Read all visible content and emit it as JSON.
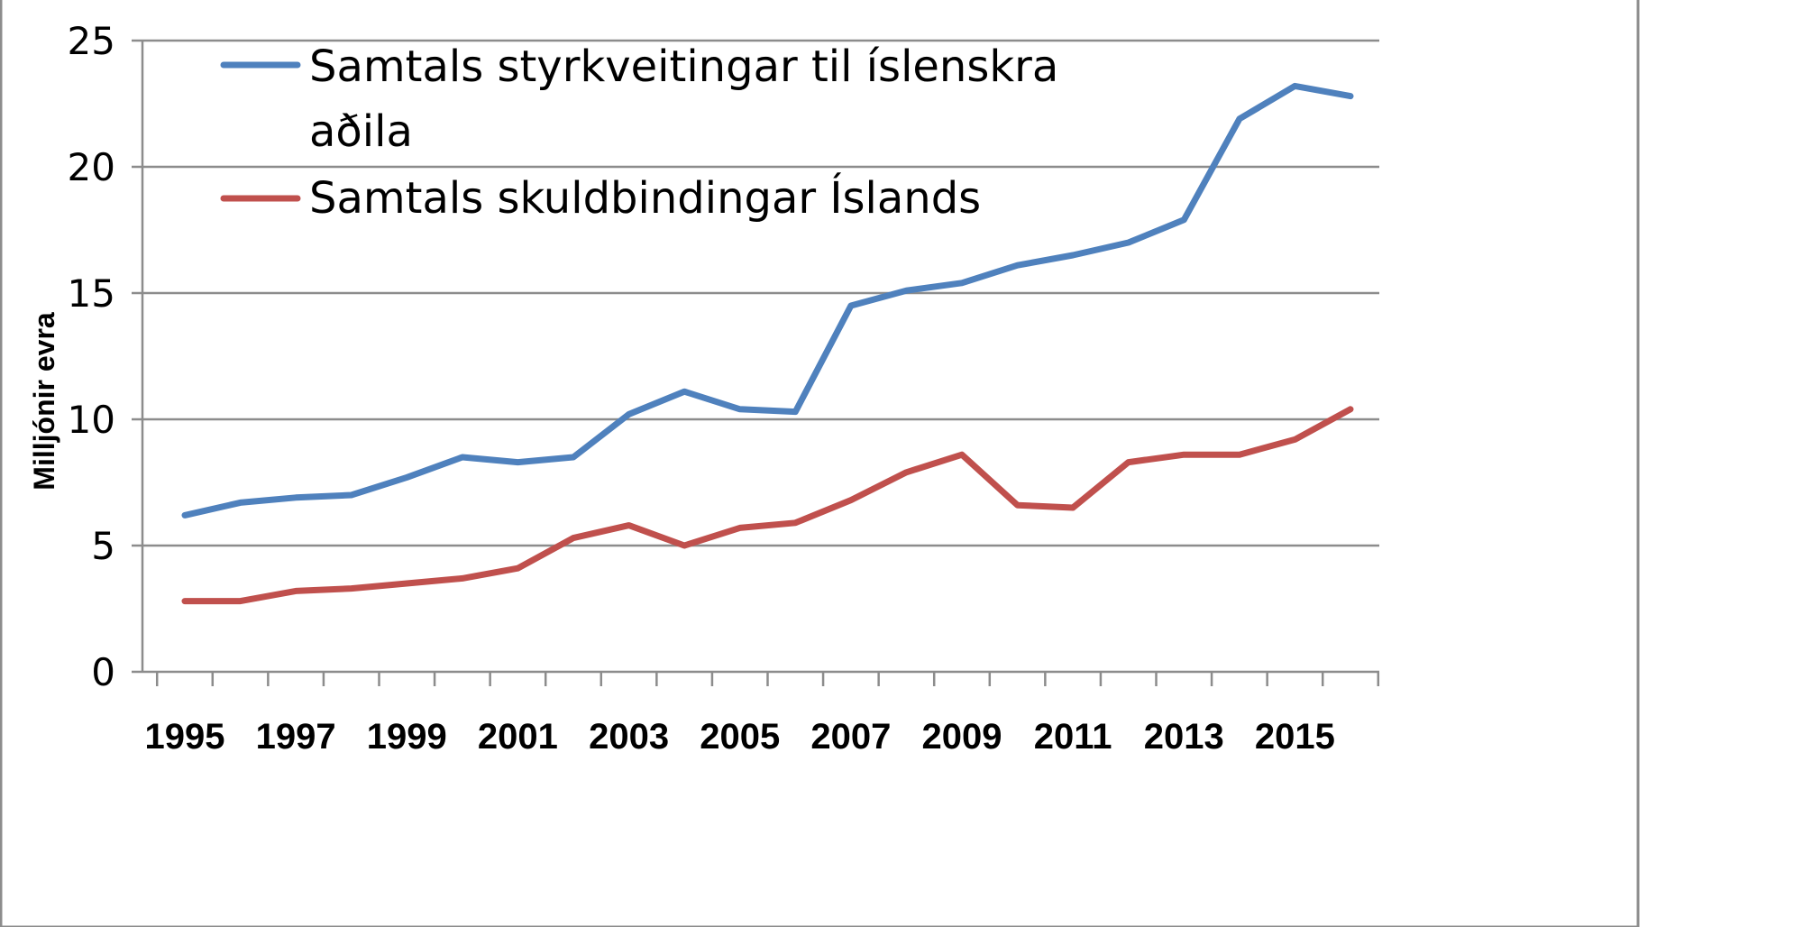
{
  "chart_data": {
    "type": "line",
    "title": "",
    "xlabel": "",
    "ylabel": "Milljónir evra",
    "ylim": [
      0,
      25
    ],
    "yticks": [
      0,
      5,
      10,
      15,
      20,
      25
    ],
    "x": [
      1995,
      1996,
      1997,
      1998,
      1999,
      2000,
      2001,
      2002,
      2003,
      2004,
      2005,
      2006,
      2007,
      2008,
      2009,
      2010,
      2011,
      2012,
      2013,
      2014,
      2015,
      2016
    ],
    "xtick_labels": [
      "1995",
      "1997",
      "1999",
      "2001",
      "2003",
      "2005",
      "2007",
      "2009",
      "2011",
      "2013",
      "2015"
    ],
    "grid": "horizontal",
    "legend_position": "top-left",
    "series": [
      {
        "name": "Samtals styrkveitingar til íslenskra aðila",
        "name_lines": [
          "Samtals styrkveitingar til íslenskra",
          "aðila"
        ],
        "color": "#4f81bd",
        "values": [
          6.2,
          6.7,
          6.9,
          7.0,
          7.7,
          8.5,
          8.3,
          8.5,
          10.2,
          11.1,
          10.4,
          10.3,
          14.5,
          15.1,
          15.4,
          16.1,
          16.5,
          17.0,
          17.9,
          21.9,
          23.2,
          22.8
        ]
      },
      {
        "name": "Samtals skuldbindingar Íslands",
        "name_lines": [
          "Samtals skuldbindingar Íslands"
        ],
        "color": "#c0504d",
        "values": [
          2.8,
          2.8,
          3.2,
          3.3,
          3.5,
          3.7,
          4.1,
          5.3,
          5.8,
          5.0,
          5.7,
          5.9,
          6.8,
          7.9,
          8.6,
          6.6,
          6.5,
          8.3,
          8.6,
          8.6,
          9.2,
          10.4
        ]
      }
    ]
  }
}
